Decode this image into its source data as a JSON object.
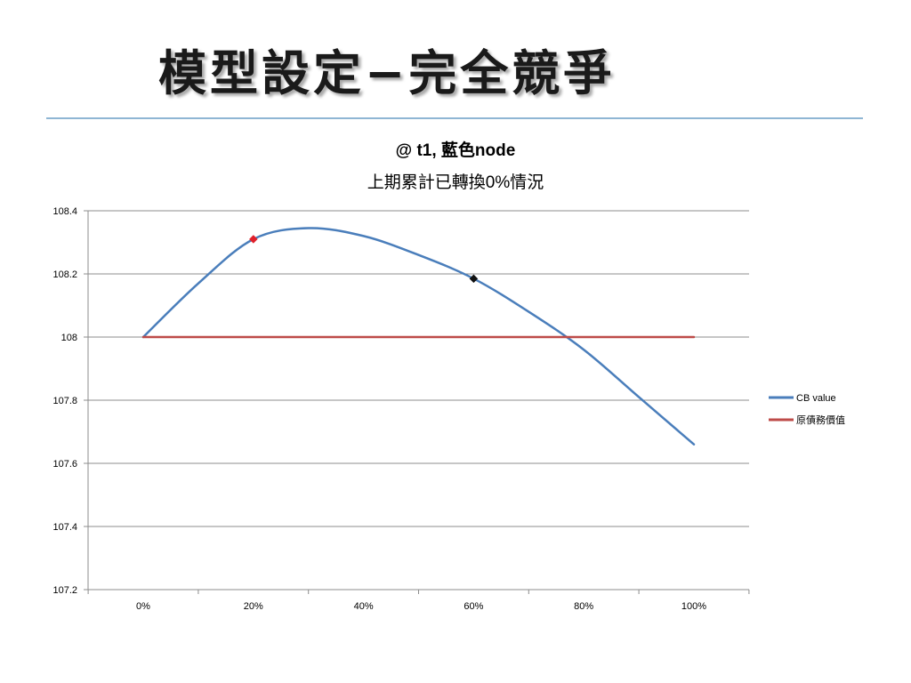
{
  "slide": {
    "title": "模型設定−完全競爭"
  },
  "chart_data": {
    "type": "line",
    "title_line1": "@ t1, 藍色node",
    "title_line2": "上期累計已轉換0%情況",
    "xlabel": "",
    "ylabel": "",
    "categories": [
      "0%",
      "20%",
      "40%",
      "60%",
      "80%",
      "100%"
    ],
    "x": [
      0,
      20,
      40,
      60,
      80,
      100
    ],
    "ylim": [
      107.2,
      108.4
    ],
    "y_ticks": [
      "107.2",
      "107.4",
      "107.6",
      "107.8",
      "108",
      "108.2",
      "108.4"
    ],
    "y_tick_values": [
      107.2,
      107.4,
      107.6,
      107.8,
      108.0,
      108.2,
      108.4
    ],
    "grid": "horizontal",
    "legend_position": "right",
    "series": [
      {
        "name": "CB value",
        "color": "#4a7ebb",
        "points": [
          [
            0,
            108.0
          ],
          [
            10,
            108.17
          ],
          [
            20,
            108.31
          ],
          [
            30,
            108.345
          ],
          [
            40,
            108.32
          ],
          [
            50,
            108.26
          ],
          [
            60,
            108.185
          ],
          [
            70,
            108.08
          ],
          [
            80,
            107.96
          ],
          [
            90,
            107.81
          ],
          [
            100,
            107.66
          ]
        ]
      },
      {
        "name": "原債務價值",
        "color": "#be4b48",
        "points": [
          [
            0,
            108.0
          ],
          [
            100,
            108.0
          ]
        ]
      }
    ],
    "markers": [
      {
        "name": "red-node",
        "x": 20,
        "y": 108.31,
        "color": "#e0202a"
      },
      {
        "name": "blue-node",
        "x": 60,
        "y": 108.185,
        "color": "#111111"
      }
    ]
  }
}
